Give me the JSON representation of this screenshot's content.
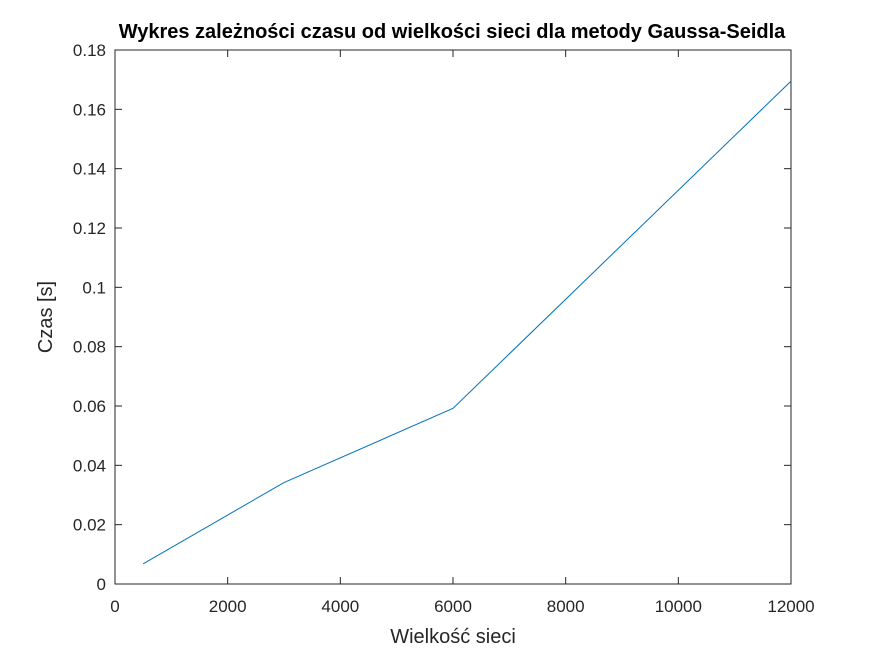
{
  "chart_data": {
    "type": "line",
    "title": "Wykres zależności czasu od wielkości sieci dla metody Gaussa-Seidla",
    "xlabel": "Wielkość sieci",
    "ylabel": "Czas [s]",
    "xlim": [
      0,
      12000
    ],
    "ylim": [
      0,
      0.18
    ],
    "xticks": [
      0,
      2000,
      4000,
      6000,
      8000,
      10000,
      12000
    ],
    "xtick_labels": [
      "0",
      "2000",
      "4000",
      "6000",
      "8000",
      "10000",
      "12000"
    ],
    "yticks": [
      0,
      0.02,
      0.04,
      0.06,
      0.08,
      0.1,
      0.12,
      0.14,
      0.16,
      0.18
    ],
    "ytick_labels": [
      "0",
      "0.02",
      "0.04",
      "0.06",
      "0.08",
      "0.1",
      "0.12",
      "0.14",
      "0.16",
      "0.18"
    ],
    "grid": false,
    "series": [
      {
        "color": "#0072bd",
        "x": [
          500,
          3000,
          6000,
          12000
        ],
        "y": [
          0.0068,
          0.0342,
          0.0592,
          0.1695
        ]
      }
    ]
  }
}
